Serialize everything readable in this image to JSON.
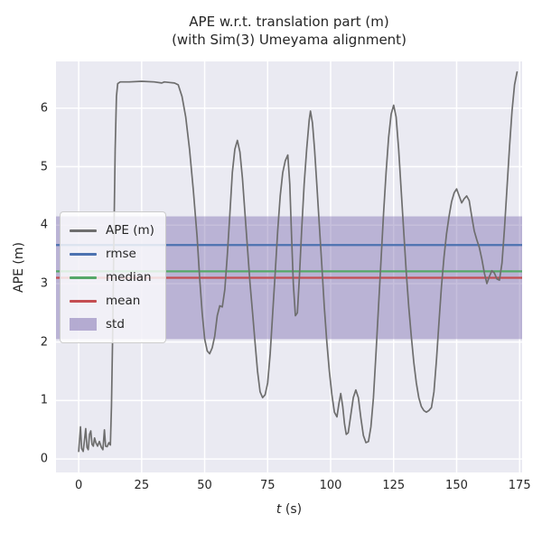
{
  "title": {
    "line1": "APE w.r.t. translation part (m)",
    "line2": "(with Sim(3) Umeyama alignment)"
  },
  "axes": {
    "xlabel": "t (s)",
    "xlabel_var": "t",
    "xlabel_unit": " (s)",
    "ylabel": "APE (m)"
  },
  "legend": {
    "items": [
      {
        "label": "APE (m)",
        "type": "line",
        "color": "#6e6e6e"
      },
      {
        "label": "rmse",
        "type": "line",
        "color": "#4C72B0"
      },
      {
        "label": "median",
        "type": "line",
        "color": "#55A868"
      },
      {
        "label": "mean",
        "type": "line",
        "color": "#C44E52"
      },
      {
        "label": "std",
        "type": "patch",
        "color": "#8172B2"
      }
    ]
  },
  "colors": {
    "figure_bg": "#ffffff",
    "plot_bg": "#eaeaf2",
    "grid": "#ffffff",
    "text": "#262626"
  },
  "chart_data": {
    "type": "line",
    "title": "APE w.r.t. translation part (m) (with Sim(3) Umeyama alignment)",
    "xlabel": "t (s)",
    "ylabel": "APE (m)",
    "xlim": [
      -9,
      176
    ],
    "ylim": [
      -0.23,
      6.8
    ],
    "x_ticks": [
      0,
      25,
      50,
      75,
      100,
      125,
      150,
      175
    ],
    "y_ticks": [
      0,
      1,
      2,
      3,
      4,
      5,
      6
    ],
    "grid": true,
    "legend_position": "center left",
    "stats": {
      "rmse": 3.66,
      "median": 3.21,
      "mean": 3.1,
      "std": 1.05
    },
    "hlines": [
      {
        "name": "rmse",
        "value": 3.66,
        "color": "#4C72B0"
      },
      {
        "name": "median",
        "value": 3.21,
        "color": "#55A868"
      },
      {
        "name": "mean",
        "value": 3.1,
        "color": "#C44E52"
      }
    ],
    "band": {
      "name": "std",
      "low": 2.05,
      "high": 4.15,
      "color": "#8172B2",
      "alpha": 0.45
    },
    "series": [
      {
        "name": "APE (m)",
        "color": "#6e6e6e",
        "points": [
          [
            0,
            0.13
          ],
          [
            0.7,
            0.55
          ],
          [
            1.2,
            0.18
          ],
          [
            1.8,
            0.13
          ],
          [
            2.3,
            0.32
          ],
          [
            2.8,
            0.52
          ],
          [
            3.3,
            0.2
          ],
          [
            3.8,
            0.16
          ],
          [
            4.3,
            0.42
          ],
          [
            4.8,
            0.48
          ],
          [
            5.3,
            0.25
          ],
          [
            5.8,
            0.22
          ],
          [
            6.3,
            0.36
          ],
          [
            6.8,
            0.28
          ],
          [
            7.5,
            0.22
          ],
          [
            8.2,
            0.3
          ],
          [
            9,
            0.2
          ],
          [
            9.6,
            0.16
          ],
          [
            10.2,
            0.5
          ],
          [
            10.7,
            0.22
          ],
          [
            11.3,
            0.21
          ],
          [
            12,
            0.28
          ],
          [
            12.6,
            0.24
          ],
          [
            13,
            0.9
          ],
          [
            13.5,
            2.2
          ],
          [
            14,
            3.9
          ],
          [
            14.5,
            5.3
          ],
          [
            15,
            6.2
          ],
          [
            15.5,
            6.42
          ],
          [
            16.5,
            6.45
          ],
          [
            20,
            6.45
          ],
          [
            25,
            6.46
          ],
          [
            30,
            6.45
          ],
          [
            33,
            6.43
          ],
          [
            34,
            6.45
          ],
          [
            36,
            6.44
          ],
          [
            38,
            6.43
          ],
          [
            39.5,
            6.4
          ],
          [
            41,
            6.2
          ],
          [
            42.5,
            5.85
          ],
          [
            44,
            5.3
          ],
          [
            45.5,
            4.6
          ],
          [
            47,
            3.8
          ],
          [
            48,
            3.1
          ],
          [
            49,
            2.5
          ],
          [
            50,
            2.05
          ],
          [
            51,
            1.85
          ],
          [
            52,
            1.8
          ],
          [
            53,
            1.9
          ],
          [
            54,
            2.1
          ],
          [
            55,
            2.45
          ],
          [
            56,
            2.62
          ],
          [
            57,
            2.6
          ],
          [
            58,
            2.9
          ],
          [
            59,
            3.5
          ],
          [
            60,
            4.2
          ],
          [
            61,
            4.9
          ],
          [
            62,
            5.3
          ],
          [
            63,
            5.45
          ],
          [
            64,
            5.25
          ],
          [
            65,
            4.8
          ],
          [
            66,
            4.2
          ],
          [
            67,
            3.6
          ],
          [
            68,
            3.0
          ],
          [
            69,
            2.5
          ],
          [
            70,
            2.0
          ],
          [
            71,
            1.5
          ],
          [
            72,
            1.15
          ],
          [
            73,
            1.05
          ],
          [
            74,
            1.1
          ],
          [
            75,
            1.3
          ],
          [
            76,
            1.8
          ],
          [
            77,
            2.5
          ],
          [
            78,
            3.2
          ],
          [
            79,
            3.9
          ],
          [
            80,
            4.5
          ],
          [
            81,
            4.9
          ],
          [
            82,
            5.1
          ],
          [
            83,
            5.2
          ],
          [
            83.8,
            4.7
          ],
          [
            84.5,
            3.8
          ],
          [
            85.2,
            3.0
          ],
          [
            86,
            2.45
          ],
          [
            86.8,
            2.5
          ],
          [
            87.6,
            3.1
          ],
          [
            88.5,
            3.9
          ],
          [
            89.5,
            4.7
          ],
          [
            90.5,
            5.3
          ],
          [
            91.5,
            5.8
          ],
          [
            92,
            5.95
          ],
          [
            92.8,
            5.75
          ],
          [
            93.6,
            5.3
          ],
          [
            94.5,
            4.7
          ],
          [
            95.5,
            4.0
          ],
          [
            96.5,
            3.3
          ],
          [
            97.5,
            2.6
          ],
          [
            98.5,
            2.0
          ],
          [
            99.5,
            1.5
          ],
          [
            100.5,
            1.1
          ],
          [
            101.5,
            0.8
          ],
          [
            102.5,
            0.72
          ],
          [
            103.3,
            0.95
          ],
          [
            104,
            1.12
          ],
          [
            104.8,
            0.9
          ],
          [
            105.5,
            0.6
          ],
          [
            106.2,
            0.42
          ],
          [
            107,
            0.45
          ],
          [
            108,
            0.75
          ],
          [
            109,
            1.05
          ],
          [
            110,
            1.18
          ],
          [
            111,
            1.05
          ],
          [
            112,
            0.7
          ],
          [
            113,
            0.4
          ],
          [
            114,
            0.28
          ],
          [
            115,
            0.3
          ],
          [
            116,
            0.55
          ],
          [
            117,
            1.05
          ],
          [
            118,
            1.8
          ],
          [
            119,
            2.6
          ],
          [
            120,
            3.4
          ],
          [
            121,
            4.2
          ],
          [
            122,
            4.9
          ],
          [
            123,
            5.5
          ],
          [
            124,
            5.9
          ],
          [
            125,
            6.05
          ],
          [
            126,
            5.85
          ],
          [
            127,
            5.3
          ],
          [
            128,
            4.6
          ],
          [
            129,
            3.9
          ],
          [
            130,
            3.2
          ],
          [
            131,
            2.6
          ],
          [
            132,
            2.1
          ],
          [
            133,
            1.65
          ],
          [
            134,
            1.3
          ],
          [
            135,
            1.05
          ],
          [
            136,
            0.9
          ],
          [
            137,
            0.83
          ],
          [
            138,
            0.8
          ],
          [
            139,
            0.83
          ],
          [
            140,
            0.88
          ],
          [
            141,
            1.15
          ],
          [
            142,
            1.7
          ],
          [
            143,
            2.35
          ],
          [
            144,
            2.95
          ],
          [
            145,
            3.45
          ],
          [
            146,
            3.85
          ],
          [
            147,
            4.15
          ],
          [
            148,
            4.4
          ],
          [
            149,
            4.55
          ],
          [
            150,
            4.62
          ],
          [
            151,
            4.5
          ],
          [
            152,
            4.38
          ],
          [
            153,
            4.45
          ],
          [
            154,
            4.5
          ],
          [
            155,
            4.42
          ],
          [
            156,
            4.15
          ],
          [
            157,
            3.9
          ],
          [
            158,
            3.75
          ],
          [
            159,
            3.62
          ],
          [
            160,
            3.42
          ],
          [
            161,
            3.18
          ],
          [
            162,
            3.0
          ],
          [
            163,
            3.12
          ],
          [
            164,
            3.22
          ],
          [
            165,
            3.18
          ],
          [
            166,
            3.08
          ],
          [
            167,
            3.06
          ],
          [
            168,
            3.35
          ],
          [
            169,
            3.95
          ],
          [
            170,
            4.65
          ],
          [
            171,
            5.35
          ],
          [
            172,
            5.95
          ],
          [
            173,
            6.4
          ],
          [
            174,
            6.62
          ]
        ]
      }
    ]
  }
}
